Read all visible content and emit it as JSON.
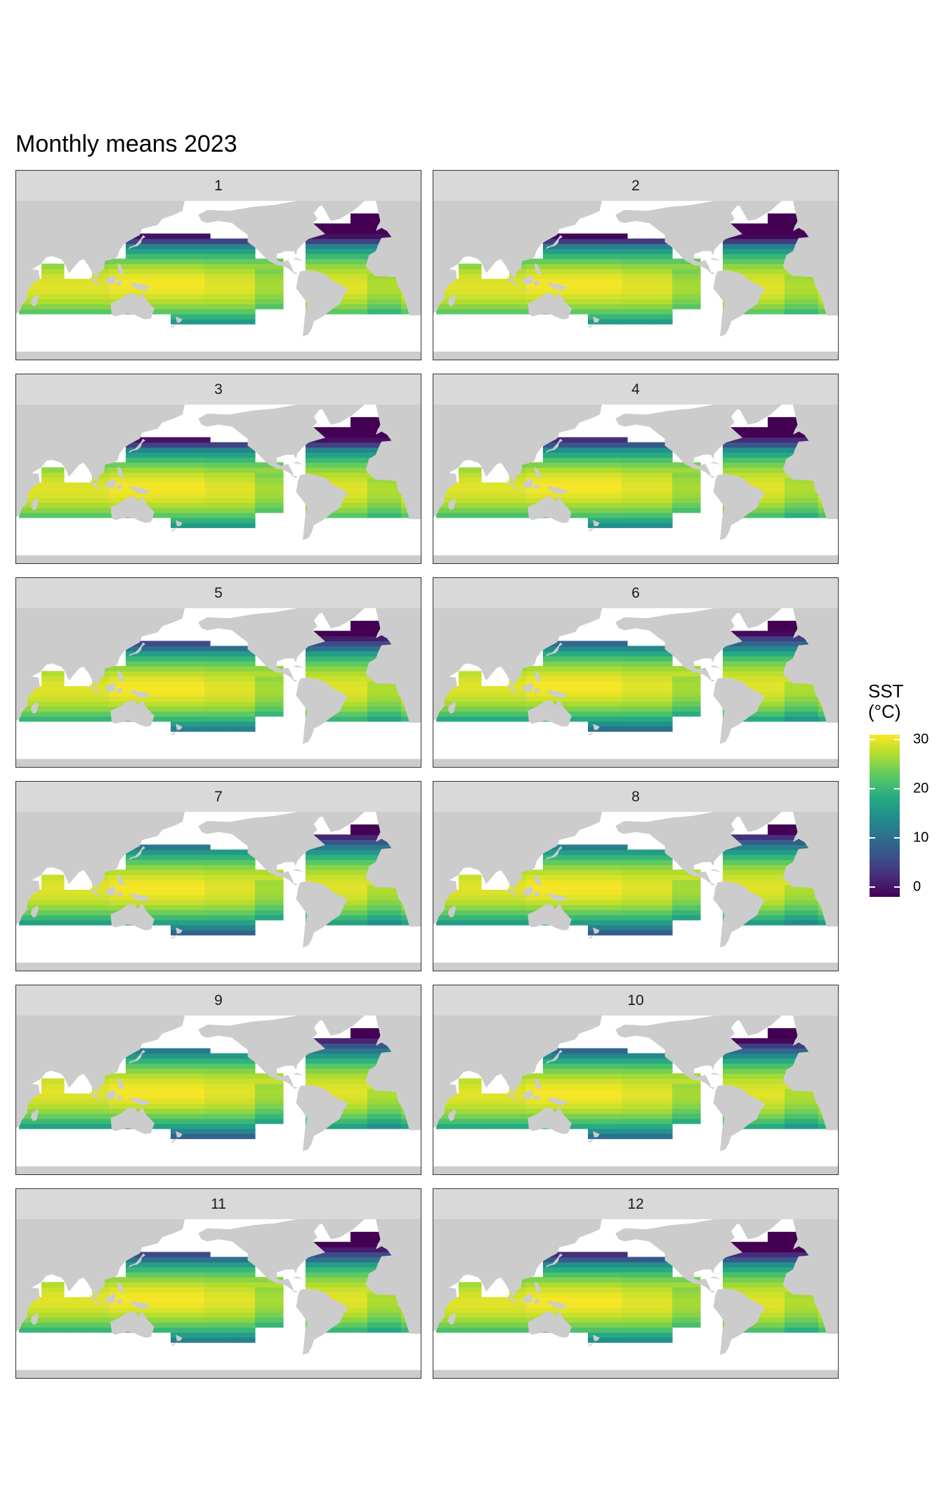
{
  "title": "Monthly means 2023",
  "legend": {
    "title_line1": "SST",
    "title_line2": "(°C)",
    "min": -2,
    "max": 31,
    "ticks": [
      {
        "value": 30,
        "label": "30"
      },
      {
        "value": 20,
        "label": "20"
      },
      {
        "value": 10,
        "label": "10"
      },
      {
        "value": 0,
        "label": "0"
      }
    ],
    "palette": [
      "#440154",
      "#472d7b",
      "#3b528b",
      "#2c728e",
      "#21918c",
      "#28ae80",
      "#5ec962",
      "#addc30",
      "#fde725"
    ]
  },
  "colors": {
    "land": "#cccccc",
    "strip_background": "#d9d9d9",
    "panel_border": "#333333"
  },
  "panels": [
    {
      "label": "1",
      "month": 1
    },
    {
      "label": "2",
      "month": 2
    },
    {
      "label": "3",
      "month": 3
    },
    {
      "label": "4",
      "month": 4
    },
    {
      "label": "5",
      "month": 5
    },
    {
      "label": "6",
      "month": 6
    },
    {
      "label": "7",
      "month": 7
    },
    {
      "label": "8",
      "month": 8
    },
    {
      "label": "9",
      "month": 9
    },
    {
      "label": "10",
      "month": 10
    },
    {
      "label": "11",
      "month": 11
    },
    {
      "label": "12",
      "month": 12
    }
  ]
}
